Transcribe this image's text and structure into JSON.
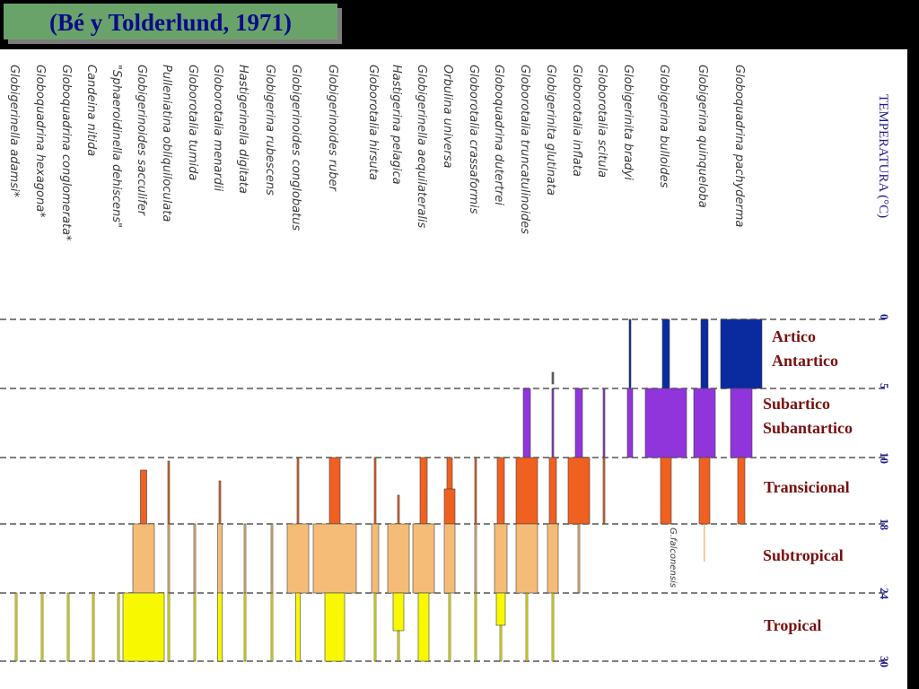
{
  "title": "(Bé y Tolderlund, 1971)",
  "axis_label": "TEMPERATURA (°C)",
  "temperature_ticks": [
    "0",
    "5",
    "10",
    "18",
    "24",
    "30"
  ],
  "zones": [
    {
      "lines": [
        "Artico",
        "Antartico"
      ]
    },
    {
      "lines": [
        "Subartico",
        "Subantartico"
      ]
    },
    {
      "lines": [
        "Transicional"
      ]
    },
    {
      "lines": [
        "Subtropical"
      ]
    },
    {
      "lines": [
        "Tropical"
      ]
    }
  ],
  "annotation": "G.falconensis",
  "species": [
    "Globigerinella adamsi*",
    "Globoquadrina hexagona*",
    "Globoquadrina conglomerata*",
    "Candeina nitida",
    "\"Sphaeroidinella dehiscens\"",
    "Globigerinoides sacculifer",
    "Pulleniatina obliquiloculata",
    "Globorotalia tumida",
    "Globorotalia menardii",
    "Hastigerinella digitata",
    "Globigerina rubescens",
    "Globigerinoides conglobatus",
    "Globigerinoides ruber",
    "Globorotalia hirsuta",
    "Hastigerina pelagica",
    "Globigerinella aequilateralis",
    "Orbulina universa",
    "Globorotalia crassaformis",
    "Globoquadrina dutertrei",
    "Globorotalia truncatulinoides",
    "Globigerinita glutinata",
    "Globorotalia inflata",
    "Globorotalia scitula",
    "Globigerinita bradyi",
    "Globigerina bulloides",
    "Globigerina quinqueloba",
    "Globoquadrina pachyderma"
  ],
  "colors": {
    "polar": "#0a2aa0",
    "subpolar": "#9035dc",
    "transitional": "#f06020",
    "subtropical": "#f5bc78",
    "tropical": "#f8f800",
    "title_bg": "#6aa36a",
    "title_text": "#0b0b8a"
  }
}
